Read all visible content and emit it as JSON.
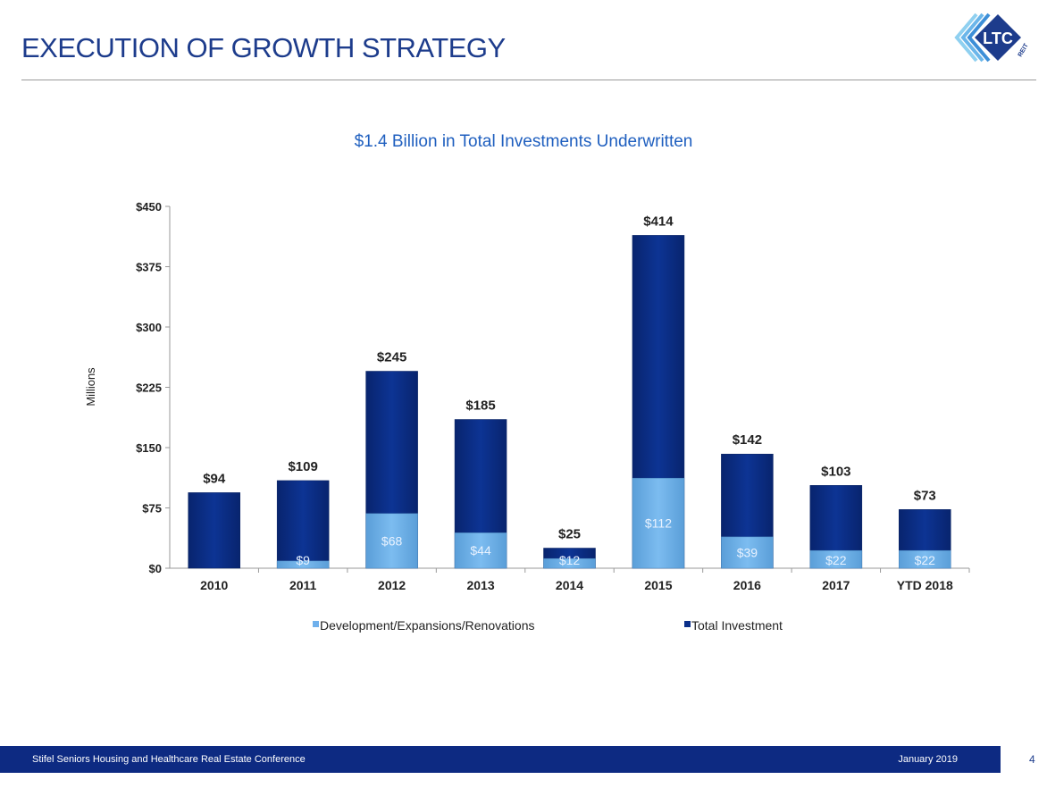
{
  "header": {
    "title": "EXECUTION OF GROWTH STRATEGY",
    "logo_text": "LTC REIT"
  },
  "chart_data": {
    "type": "bar",
    "stacked_overlay": true,
    "title": "$1.4 Billion in Total Investments Underwritten",
    "ylabel": "Millions",
    "ylim": [
      0,
      450
    ],
    "yticks": [
      "$0",
      "$75",
      "$150",
      "$225",
      "$300",
      "$375",
      "$450"
    ],
    "ytick_values": [
      0,
      75,
      150,
      225,
      300,
      375,
      450
    ],
    "categories": [
      "2010",
      "2011",
      "2012",
      "2013",
      "2014",
      "2015",
      "2016",
      "2017",
      "YTD 2018"
    ],
    "series": [
      {
        "name": "Development/Expansions/Renovations",
        "color": "#6fb0ec",
        "values": [
          0,
          9,
          68,
          44,
          12,
          112,
          39,
          22,
          22
        ],
        "labels": [
          "",
          "$9",
          "$68",
          "$44",
          "$12",
          "$112",
          "$39",
          "$22",
          "$22"
        ]
      },
      {
        "name": "Total Investment",
        "color": "#0b2f8a",
        "values": [
          94,
          109,
          245,
          185,
          25,
          414,
          142,
          103,
          73
        ],
        "labels": [
          "$94",
          "$109",
          "$245",
          "$185",
          "$25",
          "$414",
          "$142",
          "$103",
          "$73"
        ]
      }
    ],
    "legend": "bottom",
    "grid": false
  },
  "footer": {
    "conference": "Stifel Seniors Housing and Healthcare Real Estate Conference",
    "date": "January 2019",
    "page": "4"
  }
}
